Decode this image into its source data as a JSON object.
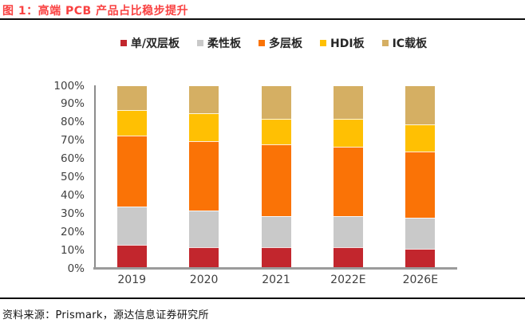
{
  "header": {
    "title": "图 1：高端 PCB 产品占比稳步提升"
  },
  "footer": {
    "source": "资料来源：Prismark，源达信息证券研究所"
  },
  "colors": {
    "title_red": "#f94141",
    "rule_black": "#0d0d0d",
    "axis_text": "#404040",
    "axis_line": "#8c8c8c",
    "baseline_gray": "#9b9b9b",
    "legend_text": "#262626"
  },
  "chart_data": {
    "type": "bar",
    "stacked": true,
    "title": "高端 PCB 产品占比稳步提升",
    "xlabel": "",
    "ylabel": "",
    "ylim": [
      0,
      100
    ],
    "grid": false,
    "legend_position": "top",
    "categories": [
      "2019",
      "2020",
      "2021",
      "2022E",
      "2026E"
    ],
    "series": [
      {
        "name": "单/双层板",
        "color": "#c2262d",
        "values": [
          13,
          12,
          12,
          12,
          11
        ]
      },
      {
        "name": "柔性板",
        "color": "#c9c9c9",
        "values": [
          21,
          20,
          17,
          17,
          17
        ]
      },
      {
        "name": "多层板",
        "color": "#fa7306",
        "values": [
          39,
          38,
          39,
          38,
          36
        ]
      },
      {
        "name": "HDI板",
        "color": "#ffc003",
        "values": [
          14,
          15,
          14,
          15,
          15
        ]
      },
      {
        "name": "IC载板",
        "color": "#d5af63",
        "values": [
          13,
          15,
          18,
          18,
          21
        ]
      }
    ],
    "yticks": [
      "0%",
      "10%",
      "20%",
      "30%",
      "40%",
      "50%",
      "60%",
      "70%",
      "80%",
      "90%",
      "100%"
    ]
  }
}
